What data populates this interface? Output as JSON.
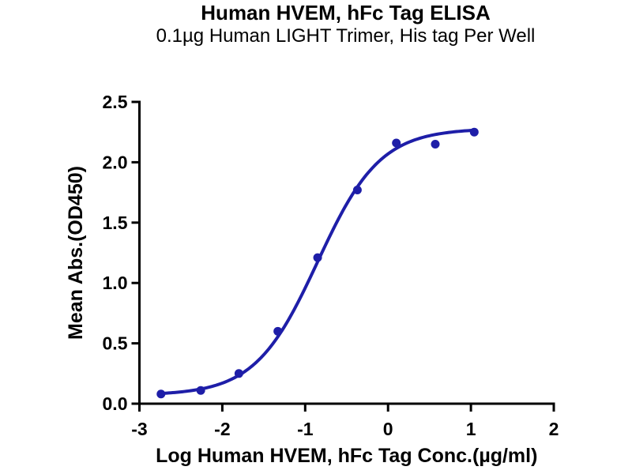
{
  "header": {
    "title": "Human HVEM, hFc Tag ELISA",
    "subtitle": "0.1µg Human LIGHT Trimer, His tag Per Well"
  },
  "chart_data": {
    "type": "scatter",
    "title": "Human HVEM, hFc Tag ELISA",
    "subtitle": "0.1µg Human LIGHT Trimer, His tag Per Well",
    "xlabel": "Log Human HVEM, hFc Tag Conc.(µg/ml)",
    "ylabel": "Mean Abs.(OD450)",
    "xlim": [
      -3,
      2
    ],
    "ylim": [
      0,
      2.5
    ],
    "x_tick_values": [
      -3,
      -2,
      -1,
      0,
      1,
      2
    ],
    "x_tick_labels": [
      "-3",
      "-2",
      "-1",
      "0",
      "1",
      "2"
    ],
    "y_tick_values": [
      0,
      0.5,
      1,
      1.5,
      2,
      2.5
    ],
    "y_tick_labels": [
      "0.0",
      "0.5",
      "1.0",
      "1.5",
      "2.0",
      "2.5"
    ],
    "grid": false,
    "legend_position": "none",
    "series": [
      {
        "name": "Human HVEM, hFc Tag",
        "marker": "circle",
        "color": "#1e1ea8",
        "x": [
          -2.74,
          -2.26,
          -1.8,
          -1.33,
          -0.85,
          -0.37,
          0.1,
          0.57,
          1.04
        ],
        "y": [
          0.08,
          0.11,
          0.25,
          0.6,
          1.21,
          1.77,
          2.16,
          2.15,
          2.25
        ]
      }
    ],
    "fit_curve": {
      "model": "4PL sigmoid",
      "bottom": 0.07,
      "top": 2.28,
      "logEC50": -0.85,
      "hillslope": 1.15,
      "color": "#1e1ea8"
    },
    "axis_color": "#000000",
    "background_color": "#ffffff"
  }
}
